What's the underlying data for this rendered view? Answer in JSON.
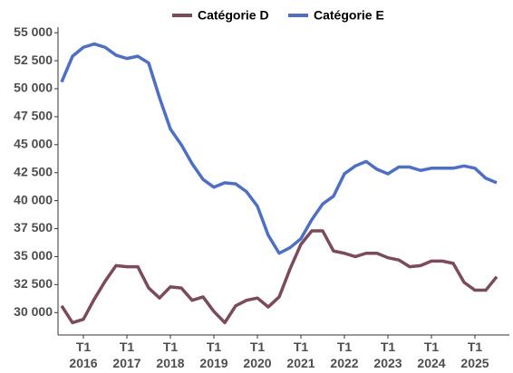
{
  "chart_data": {
    "type": "line",
    "categories": [
      null,
      null,
      "T1 2016",
      null,
      null,
      null,
      "T1 2017",
      null,
      null,
      null,
      "T1 2018",
      null,
      null,
      null,
      "T1 2019",
      null,
      null,
      null,
      "T1 2020",
      null,
      null,
      null,
      "T1 2021",
      null,
      null,
      null,
      "T1 2022",
      null,
      null,
      null,
      "T1 2023",
      null,
      null,
      null,
      "T1 2024",
      null,
      null,
      null,
      "T1 2025",
      null,
      null
    ],
    "series": [
      {
        "name": "Catégorie D",
        "color": "#7b4a5c",
        "values": [
          30600,
          29100,
          29400,
          31200,
          32800,
          34200,
          34100,
          34100,
          32200,
          31300,
          32300,
          32200,
          31100,
          31400,
          30100,
          29100,
          30600,
          31100,
          31300,
          30500,
          31400,
          33900,
          36100,
          37300,
          37300,
          35500,
          35300,
          35000,
          35300,
          35300,
          34900,
          34700,
          34100,
          34200,
          34600,
          34600,
          34400,
          32700,
          32000,
          32000,
          33200
        ]
      },
      {
        "name": "Catégorie E",
        "color": "#4f6fc4",
        "values": [
          50600,
          52900,
          53700,
          54000,
          53700,
          53000,
          52700,
          52900,
          52300,
          49200,
          46400,
          45000,
          43300,
          41900,
          41200,
          41600,
          41500,
          40800,
          39500,
          36900,
          35300,
          35800,
          36600,
          38300,
          39700,
          40400,
          42400,
          43100,
          43500,
          42800,
          42400,
          43000,
          43000,
          42700,
          42900,
          42900,
          42900,
          43100,
          42900,
          42000,
          41600
        ]
      }
    ],
    "ylim": [
      28000,
      55500
    ],
    "yticks": [
      {
        "value": 30000,
        "label": "30 000"
      },
      {
        "value": 32500,
        "label": "32 500"
      },
      {
        "value": 35000,
        "label": "35 000"
      },
      {
        "value": 37500,
        "label": "37 500"
      },
      {
        "value": 40000,
        "label": "40 000"
      },
      {
        "value": 42500,
        "label": "42 500"
      },
      {
        "value": 45000,
        "label": "45 000"
      },
      {
        "value": 47500,
        "label": "47 500"
      },
      {
        "value": 50000,
        "label": "50 000"
      },
      {
        "value": 52500,
        "label": "52 500"
      },
      {
        "value": 55000,
        "label": "55 000"
      }
    ],
    "legend": "top"
  }
}
